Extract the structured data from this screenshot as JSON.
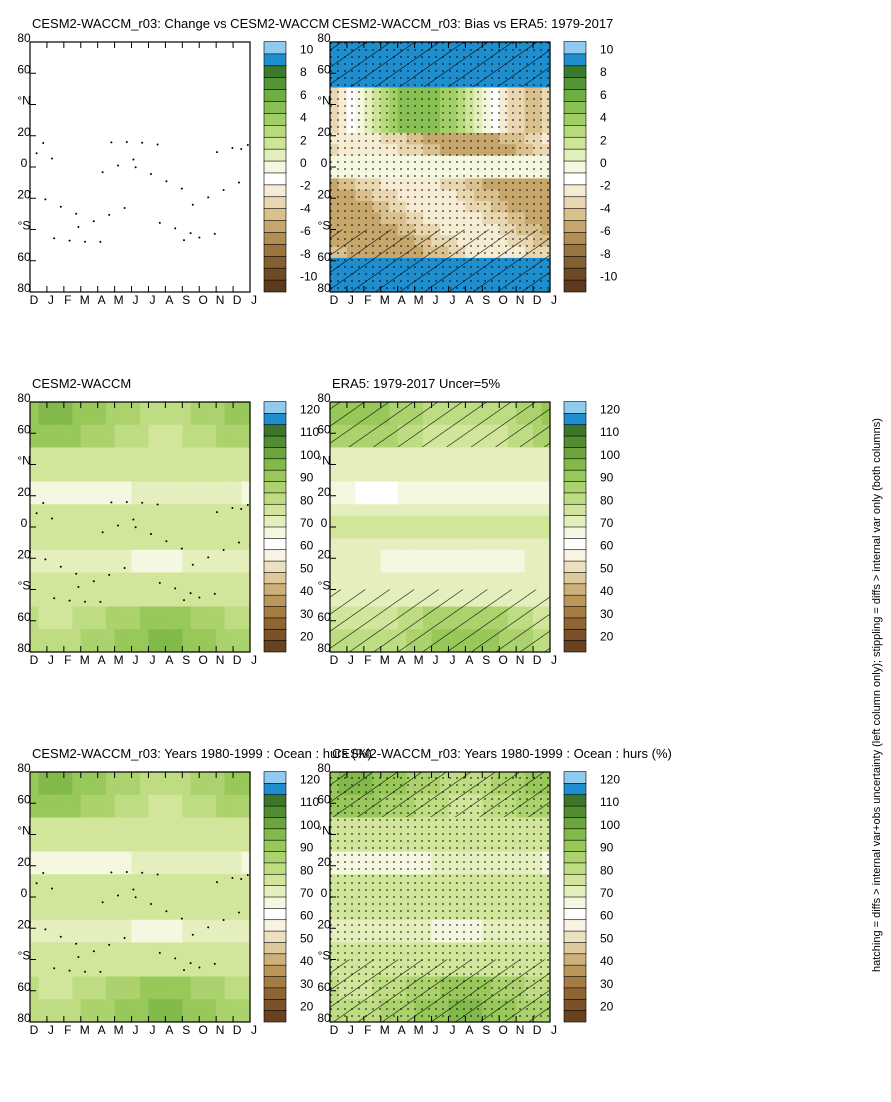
{
  "footer": "hatching = diffs > internal var+obs uncertainty (left column only); stippling = diffs > internal var only (both columns)",
  "colors": {
    "abs": [
      "#6b4220",
      "#7c5129",
      "#8f6533",
      "#a57c44",
      "#bb9659",
      "#cdb079",
      "#ddc99c",
      "#ece0bf",
      "#f8f3e2",
      "#ffffff",
      "#f4f8e0",
      "#e4efbd",
      "#d1e69a",
      "#bedd82",
      "#abd26c",
      "#98c75a",
      "#82b94b",
      "#6ca53d",
      "#538d31",
      "#3c7628",
      "#1f8ecf",
      "#8ecbee"
    ],
    "diff": [
      "#5c3a1b",
      "#6e4a24",
      "#83602f",
      "#9a7540",
      "#b28d54",
      "#c7a66c",
      "#d9c08d",
      "#e9d7b1",
      "#f6ecd3",
      "#ffffff",
      "#f4f8e0",
      "#e2efbb",
      "#cde596",
      "#b7da7c",
      "#a1cf66",
      "#89c054",
      "#6fad45",
      "#549538",
      "#3b7a2c",
      "#1f8ecf",
      "#8ecbee"
    ]
  },
  "panels": [
    {
      "title": "CESM2-WACCM_r03: Years 1980-1999 : Ocean : hurs (%)",
      "cbar": "abs",
      "field": "abs",
      "hatch": true,
      "stipple": "dense",
      "cbar_labels": [
        "120",
        "110",
        "100",
        "90",
        "80",
        "70",
        "60",
        "50",
        "40",
        "30",
        "20"
      ]
    },
    {
      "title": "CESM2-WACCM_r03: Years 1980-1999 : Ocean : hurs (%)",
      "cbar": "abs",
      "field": "abs",
      "hatch": false,
      "stipple": "sparse",
      "cbar_labels": [
        "120",
        "110",
        "100",
        "90",
        "80",
        "70",
        "60",
        "50",
        "40",
        "30",
        "20"
      ]
    },
    {
      "title": "ERA5: 1979-2017 Uncer=5%",
      "cbar": "abs",
      "field": "abs2",
      "hatch": true,
      "stipple": "none",
      "cbar_labels": [
        "120",
        "110",
        "100",
        "90",
        "80",
        "70",
        "60",
        "50",
        "40",
        "30",
        "20"
      ]
    },
    {
      "title": "CESM2-WACCM",
      "cbar": "abs",
      "field": "abs",
      "hatch": false,
      "stipple": "sparse",
      "cbar_labels": [
        "120",
        "110",
        "100",
        "90",
        "80",
        "70",
        "60",
        "50",
        "40",
        "30",
        "20"
      ]
    },
    {
      "title": "CESM2-WACCM_r03: Bias vs ERA5: 1979-2017",
      "cbar": "diff",
      "field": "bias",
      "hatch": true,
      "stipple": "dense",
      "cbar_labels": [
        "10",
        "8",
        "6",
        "4",
        "2",
        "0",
        "-2",
        "-4",
        "-6",
        "-8",
        "-10"
      ]
    },
    {
      "title": "CESM2-WACCM_r03: Change vs CESM2-WACCM",
      "cbar": "diff",
      "field": "change",
      "hatch": false,
      "stipple": "sparse",
      "cbar_labels": [
        "10",
        "8",
        "6",
        "4",
        "2",
        "0",
        "-2",
        "-4",
        "-6",
        "-8",
        "-10"
      ]
    }
  ],
  "chart_data": {
    "type": "heatmap",
    "x_ticks": [
      "D",
      "J",
      "F",
      "M",
      "A",
      "M",
      "J",
      "J",
      "A",
      "S",
      "O",
      "N",
      "D",
      "J"
    ],
    "y_ticks": [
      "80",
      "60",
      "°N",
      "20",
      "0",
      "20",
      "°S",
      "60",
      "80"
    ]
  }
}
